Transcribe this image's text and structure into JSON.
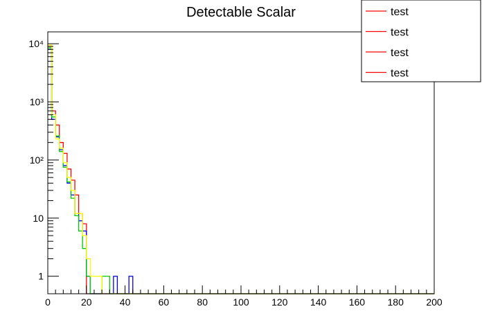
{
  "chart_data": {
    "type": "line",
    "title": "Detectable Scalar",
    "xlabel": "",
    "ylabel": "",
    "x_scale": "linear",
    "y_scale": "log",
    "xlim": [
      0,
      200
    ],
    "ylim": [
      0.5,
      16000
    ],
    "grid": false,
    "legend_placement": "top-right",
    "bin_width": 2,
    "x_ticks": [
      0,
      20,
      40,
      60,
      80,
      100,
      120,
      140,
      160,
      180,
      200
    ],
    "x_tick_labels": [
      "0",
      "20",
      "40",
      "60",
      "80",
      "100",
      "120",
      "140",
      "160",
      "180",
      "200"
    ],
    "y_ticks": [
      1,
      10,
      100,
      1000,
      10000
    ],
    "y_tick_labels": [
      "1",
      "10",
      "10²",
      "10³",
      "10⁴"
    ],
    "legend": [
      {
        "label": "test",
        "color": "#ff0000"
      },
      {
        "label": "test",
        "color": "#ff0000"
      },
      {
        "label": "test",
        "color": "#ff0000"
      },
      {
        "label": "test",
        "color": "#ff0000"
      }
    ],
    "series": [
      {
        "color": "#ff0000",
        "values": [
          9000,
          700,
          400,
          200,
          130,
          70,
          45,
          25,
          12,
          8
        ]
      },
      {
        "color": "#0000ff",
        "values": [
          8000,
          500,
          250,
          150,
          80,
          40,
          25,
          12,
          9,
          6,
          1,
          0,
          0,
          0,
          0,
          0,
          0,
          1,
          0,
          0,
          0,
          1
        ]
      },
      {
        "color": "#00cc00",
        "values": [
          8500,
          550,
          260,
          140,
          75,
          42,
          22,
          11,
          6,
          3,
          1,
          0,
          0,
          0,
          1,
          1
        ]
      },
      {
        "color": "#ffff00",
        "values": [
          9500,
          600,
          230,
          160,
          90,
          50,
          30,
          12,
          12,
          5,
          2,
          1,
          1,
          1,
          0,
          0,
          0,
          0,
          0,
          0,
          0,
          0,
          0,
          0,
          0,
          0,
          0,
          0,
          0,
          0,
          0,
          0,
          0,
          0,
          0,
          0,
          0,
          0,
          0,
          0,
          0,
          0,
          0,
          0,
          0,
          0,
          0,
          0,
          0,
          0,
          0,
          0,
          0,
          0,
          0,
          0,
          0,
          0,
          0,
          0,
          0,
          0,
          0,
          0,
          0,
          0,
          0,
          0,
          0,
          0,
          0,
          0,
          0,
          0,
          0,
          0,
          0,
          0,
          0,
          0,
          0,
          0,
          0,
          0,
          0,
          0,
          0,
          0,
          0,
          0,
          0,
          0,
          0,
          0,
          0,
          0,
          0,
          0,
          0,
          0
        ]
      }
    ]
  }
}
